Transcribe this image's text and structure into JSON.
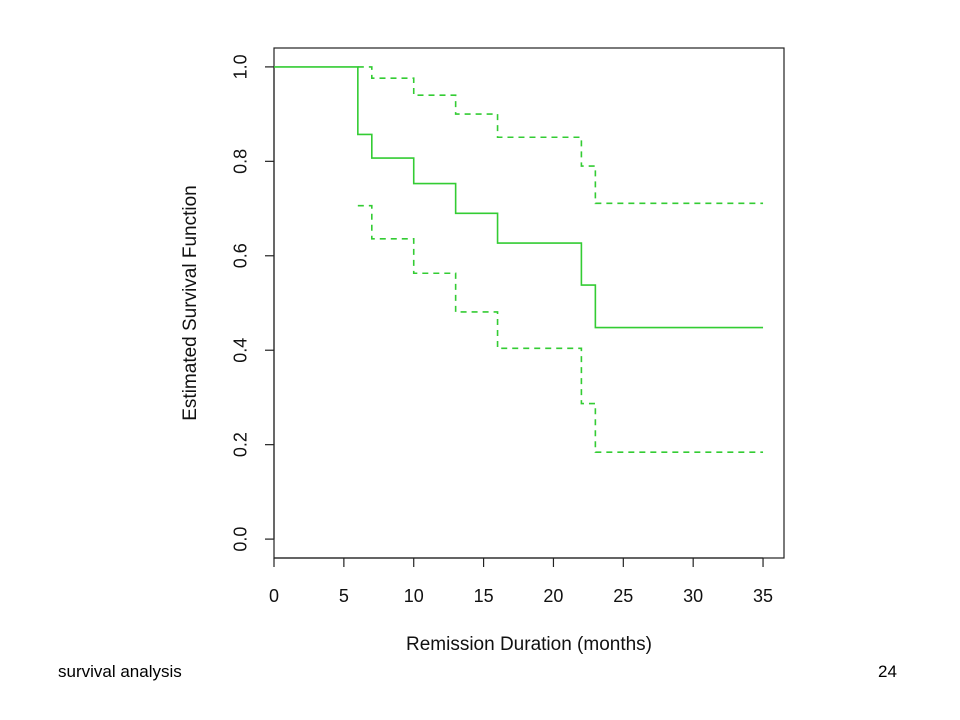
{
  "footer": {
    "left_text": "survival analysis",
    "page_number": "24"
  },
  "chart_data": {
    "type": "line",
    "title": "",
    "xlabel": "Remission Duration (months)",
    "ylabel": "Estimated Survival Function",
    "xlim": [
      0,
      36.5
    ],
    "ylim": [
      -0.04,
      1.04
    ],
    "x_ticks": [
      0,
      5,
      10,
      15,
      20,
      25,
      30,
      35
    ],
    "y_ticks": [
      0.0,
      0.2,
      0.4,
      0.6,
      0.8,
      1.0
    ],
    "x_tick_labels": [
      "0",
      "5",
      "10",
      "15",
      "20",
      "25",
      "30",
      "35"
    ],
    "y_tick_labels": [
      "0.0",
      "0.2",
      "0.4",
      "0.6",
      "0.8",
      "1.0"
    ],
    "grid": false,
    "line_color": "#33cc33",
    "series": [
      {
        "style": "solid",
        "steps": [
          [
            0,
            1.0
          ],
          [
            6,
            0.857
          ],
          [
            7,
            0.807
          ],
          [
            10,
            0.753
          ],
          [
            13,
            0.69
          ],
          [
            16,
            0.627
          ],
          [
            22,
            0.538
          ],
          [
            23,
            0.448
          ],
          [
            35,
            0.448
          ]
        ]
      },
      {
        "style": "dashed",
        "steps": [
          [
            6,
            1.0
          ],
          [
            7,
            0.976
          ],
          [
            10,
            0.94
          ],
          [
            13,
            0.9
          ],
          [
            16,
            0.851
          ],
          [
            22,
            0.79
          ],
          [
            23,
            0.711
          ],
          [
            35,
            0.711
          ]
        ]
      },
      {
        "style": "dashed",
        "steps": [
          [
            6,
            0.706
          ],
          [
            7,
            0.636
          ],
          [
            10,
            0.563
          ],
          [
            13,
            0.481
          ],
          [
            16,
            0.404
          ],
          [
            22,
            0.287
          ],
          [
            23,
            0.184
          ],
          [
            35,
            0.184
          ]
        ]
      }
    ]
  }
}
